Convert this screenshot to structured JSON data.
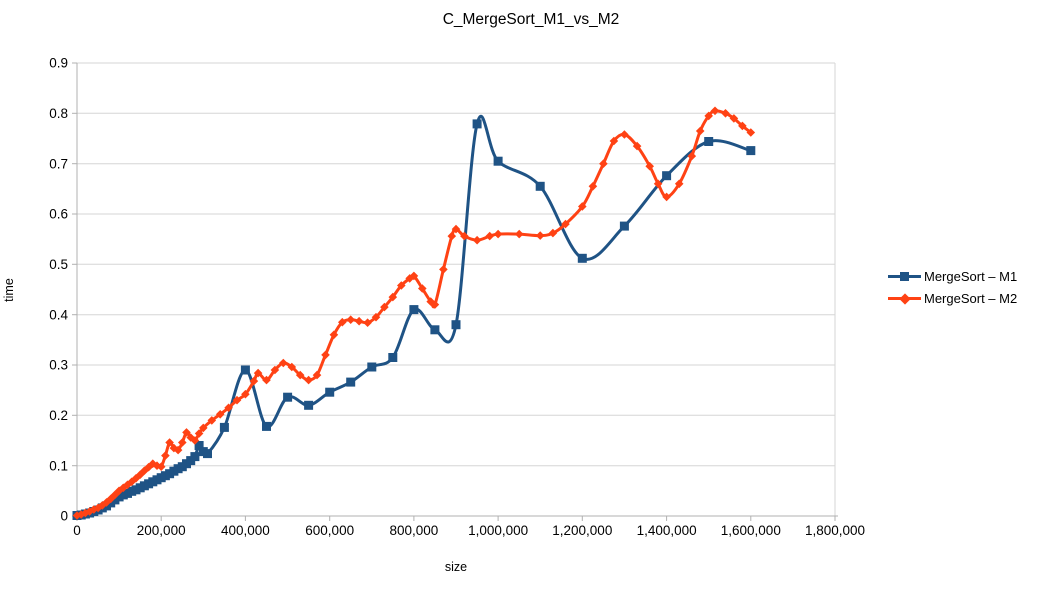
{
  "chart_data": {
    "type": "line",
    "title": "C_MergeSort_M1_vs_M2",
    "xlabel": "size",
    "ylabel": "time",
    "xlim": [
      0,
      1800000
    ],
    "ylim": [
      0,
      0.9
    ],
    "grid": "horizontal",
    "legend_position": "right",
    "colors": {
      "grid": "#d6d6d6",
      "axis": "#b0b0b0",
      "text": "#000000",
      "background": "#ffffff"
    },
    "x_ticks": [
      {
        "v": 0,
        "label": "0"
      },
      {
        "v": 200000,
        "label": "200,000"
      },
      {
        "v": 400000,
        "label": "400,000"
      },
      {
        "v": 600000,
        "label": "600,000"
      },
      {
        "v": 800000,
        "label": "800,000"
      },
      {
        "v": 1000000,
        "label": "1,000,000"
      },
      {
        "v": 1200000,
        "label": "1,200,000"
      },
      {
        "v": 1400000,
        "label": "1,400,000"
      },
      {
        "v": 1600000,
        "label": "1,600,000"
      },
      {
        "v": 1800000,
        "label": "1,800,000"
      }
    ],
    "y_ticks": [
      {
        "v": 0,
        "label": "0"
      },
      {
        "v": 0.1,
        "label": "0.1"
      },
      {
        "v": 0.2,
        "label": "0.2"
      },
      {
        "v": 0.3,
        "label": "0.3"
      },
      {
        "v": 0.4,
        "label": "0.4"
      },
      {
        "v": 0.5,
        "label": "0.5"
      },
      {
        "v": 0.6,
        "label": "0.6"
      },
      {
        "v": 0.7,
        "label": "0.7"
      },
      {
        "v": 0.8,
        "label": "0.8"
      },
      {
        "v": 0.9,
        "label": "0.9"
      }
    ],
    "series": [
      {
        "name": "MergeSort – M1",
        "color": "#1f5385",
        "marker": "square",
        "line_width": 3,
        "points": [
          [
            0,
            0.001
          ],
          [
            10000,
            0.002
          ],
          [
            20000,
            0.004
          ],
          [
            30000,
            0.006
          ],
          [
            40000,
            0.009
          ],
          [
            50000,
            0.012
          ],
          [
            60000,
            0.016
          ],
          [
            70000,
            0.02
          ],
          [
            80000,
            0.026
          ],
          [
            90000,
            0.032
          ],
          [
            100000,
            0.038
          ],
          [
            110000,
            0.042
          ],
          [
            120000,
            0.045
          ],
          [
            130000,
            0.049
          ],
          [
            140000,
            0.052
          ],
          [
            150000,
            0.056
          ],
          [
            160000,
            0.06
          ],
          [
            170000,
            0.064
          ],
          [
            180000,
            0.068
          ],
          [
            190000,
            0.072
          ],
          [
            200000,
            0.076
          ],
          [
            210000,
            0.08
          ],
          [
            220000,
            0.084
          ],
          [
            230000,
            0.089
          ],
          [
            240000,
            0.094
          ],
          [
            250000,
            0.098
          ],
          [
            260000,
            0.104
          ],
          [
            270000,
            0.11
          ],
          [
            280000,
            0.118
          ],
          [
            290000,
            0.14
          ],
          [
            300000,
            0.128
          ],
          [
            310000,
            0.124
          ],
          [
            350000,
            0.176
          ],
          [
            400000,
            0.29
          ],
          [
            450000,
            0.178
          ],
          [
            500000,
            0.236
          ],
          [
            550000,
            0.22
          ],
          [
            600000,
            0.246
          ],
          [
            650000,
            0.266
          ],
          [
            700000,
            0.296
          ],
          [
            750000,
            0.315
          ],
          [
            800000,
            0.41
          ],
          [
            850000,
            0.37
          ],
          [
            900000,
            0.38
          ],
          [
            950000,
            0.779
          ],
          [
            1000000,
            0.705
          ],
          [
            1100000,
            0.655
          ],
          [
            1200000,
            0.512
          ],
          [
            1300000,
            0.576
          ],
          [
            1400000,
            0.676
          ],
          [
            1500000,
            0.744
          ],
          [
            1600000,
            0.726
          ]
        ]
      },
      {
        "name": "MergeSort – M2",
        "color": "#ff4214",
        "marker": "diamond",
        "line_width": 3,
        "points": [
          [
            0,
            0.001
          ],
          [
            10000,
            0.003
          ],
          [
            20000,
            0.006
          ],
          [
            30000,
            0.009
          ],
          [
            40000,
            0.013
          ],
          [
            50000,
            0.016
          ],
          [
            60000,
            0.021
          ],
          [
            70000,
            0.027
          ],
          [
            80000,
            0.034
          ],
          [
            90000,
            0.042
          ],
          [
            100000,
            0.05
          ],
          [
            110000,
            0.056
          ],
          [
            120000,
            0.062
          ],
          [
            130000,
            0.068
          ],
          [
            140000,
            0.075
          ],
          [
            150000,
            0.082
          ],
          [
            160000,
            0.09
          ],
          [
            170000,
            0.097
          ],
          [
            180000,
            0.104
          ],
          [
            190000,
            0.1
          ],
          [
            200000,
            0.098
          ],
          [
            210000,
            0.12
          ],
          [
            220000,
            0.146
          ],
          [
            230000,
            0.135
          ],
          [
            240000,
            0.131
          ],
          [
            250000,
            0.146
          ],
          [
            260000,
            0.166
          ],
          [
            270000,
            0.156
          ],
          [
            280000,
            0.15
          ],
          [
            290000,
            0.164
          ],
          [
            300000,
            0.175
          ],
          [
            320000,
            0.19
          ],
          [
            340000,
            0.202
          ],
          [
            360000,
            0.215
          ],
          [
            380000,
            0.23
          ],
          [
            400000,
            0.242
          ],
          [
            420000,
            0.268
          ],
          [
            430000,
            0.284
          ],
          [
            450000,
            0.27
          ],
          [
            470000,
            0.29
          ],
          [
            490000,
            0.304
          ],
          [
            510000,
            0.296
          ],
          [
            530000,
            0.28
          ],
          [
            550000,
            0.27
          ],
          [
            570000,
            0.28
          ],
          [
            590000,
            0.32
          ],
          [
            610000,
            0.36
          ],
          [
            630000,
            0.385
          ],
          [
            650000,
            0.39
          ],
          [
            670000,
            0.387
          ],
          [
            690000,
            0.384
          ],
          [
            710000,
            0.395
          ],
          [
            730000,
            0.415
          ],
          [
            750000,
            0.435
          ],
          [
            770000,
            0.458
          ],
          [
            790000,
            0.472
          ],
          [
            800000,
            0.477
          ],
          [
            820000,
            0.452
          ],
          [
            840000,
            0.426
          ],
          [
            850000,
            0.42
          ],
          [
            870000,
            0.49
          ],
          [
            890000,
            0.556
          ],
          [
            900000,
            0.57
          ],
          [
            920000,
            0.556
          ],
          [
            950000,
            0.548
          ],
          [
            980000,
            0.556
          ],
          [
            1000000,
            0.56
          ],
          [
            1050000,
            0.56
          ],
          [
            1100000,
            0.557
          ],
          [
            1130000,
            0.562
          ],
          [
            1160000,
            0.58
          ],
          [
            1200000,
            0.615
          ],
          [
            1225000,
            0.655
          ],
          [
            1250000,
            0.7
          ],
          [
            1275000,
            0.745
          ],
          [
            1300000,
            0.758
          ],
          [
            1330000,
            0.735
          ],
          [
            1360000,
            0.695
          ],
          [
            1380000,
            0.66
          ],
          [
            1400000,
            0.634
          ],
          [
            1430000,
            0.66
          ],
          [
            1460000,
            0.715
          ],
          [
            1480000,
            0.765
          ],
          [
            1500000,
            0.795
          ],
          [
            1515000,
            0.805
          ],
          [
            1540000,
            0.8
          ],
          [
            1560000,
            0.79
          ],
          [
            1580000,
            0.775
          ],
          [
            1600000,
            0.762
          ]
        ]
      }
    ]
  }
}
